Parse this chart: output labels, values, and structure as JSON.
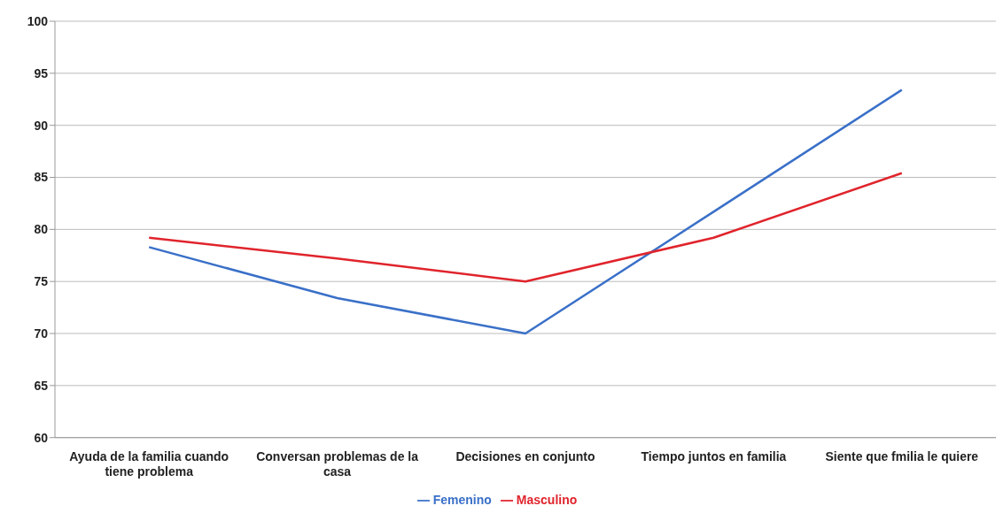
{
  "chart_data": {
    "type": "line",
    "categories": [
      "Ayuda de la familia cuando tiene problema",
      "Conversan problemas de la casa",
      "Decisiones en conjunto",
      "Tiempo juntos en familia",
      "Siente que fmilia le quiere"
    ],
    "series": [
      {
        "name": "Femenino",
        "color": "#3a70c8",
        "values": [
          78.3,
          73.4,
          70,
          81.7,
          93.4
        ]
      },
      {
        "name": "Masculino",
        "color": "#e0242c",
        "values": [
          79.2,
          77.2,
          75,
          79.2,
          85.4
        ]
      }
    ],
    "ylim": [
      60,
      100
    ],
    "yticks": [
      60,
      65,
      70,
      75,
      80,
      85,
      90,
      95,
      100
    ],
    "grid": "y",
    "legend": "bottom",
    "marker": "none",
    "line_style": "solid"
  }
}
